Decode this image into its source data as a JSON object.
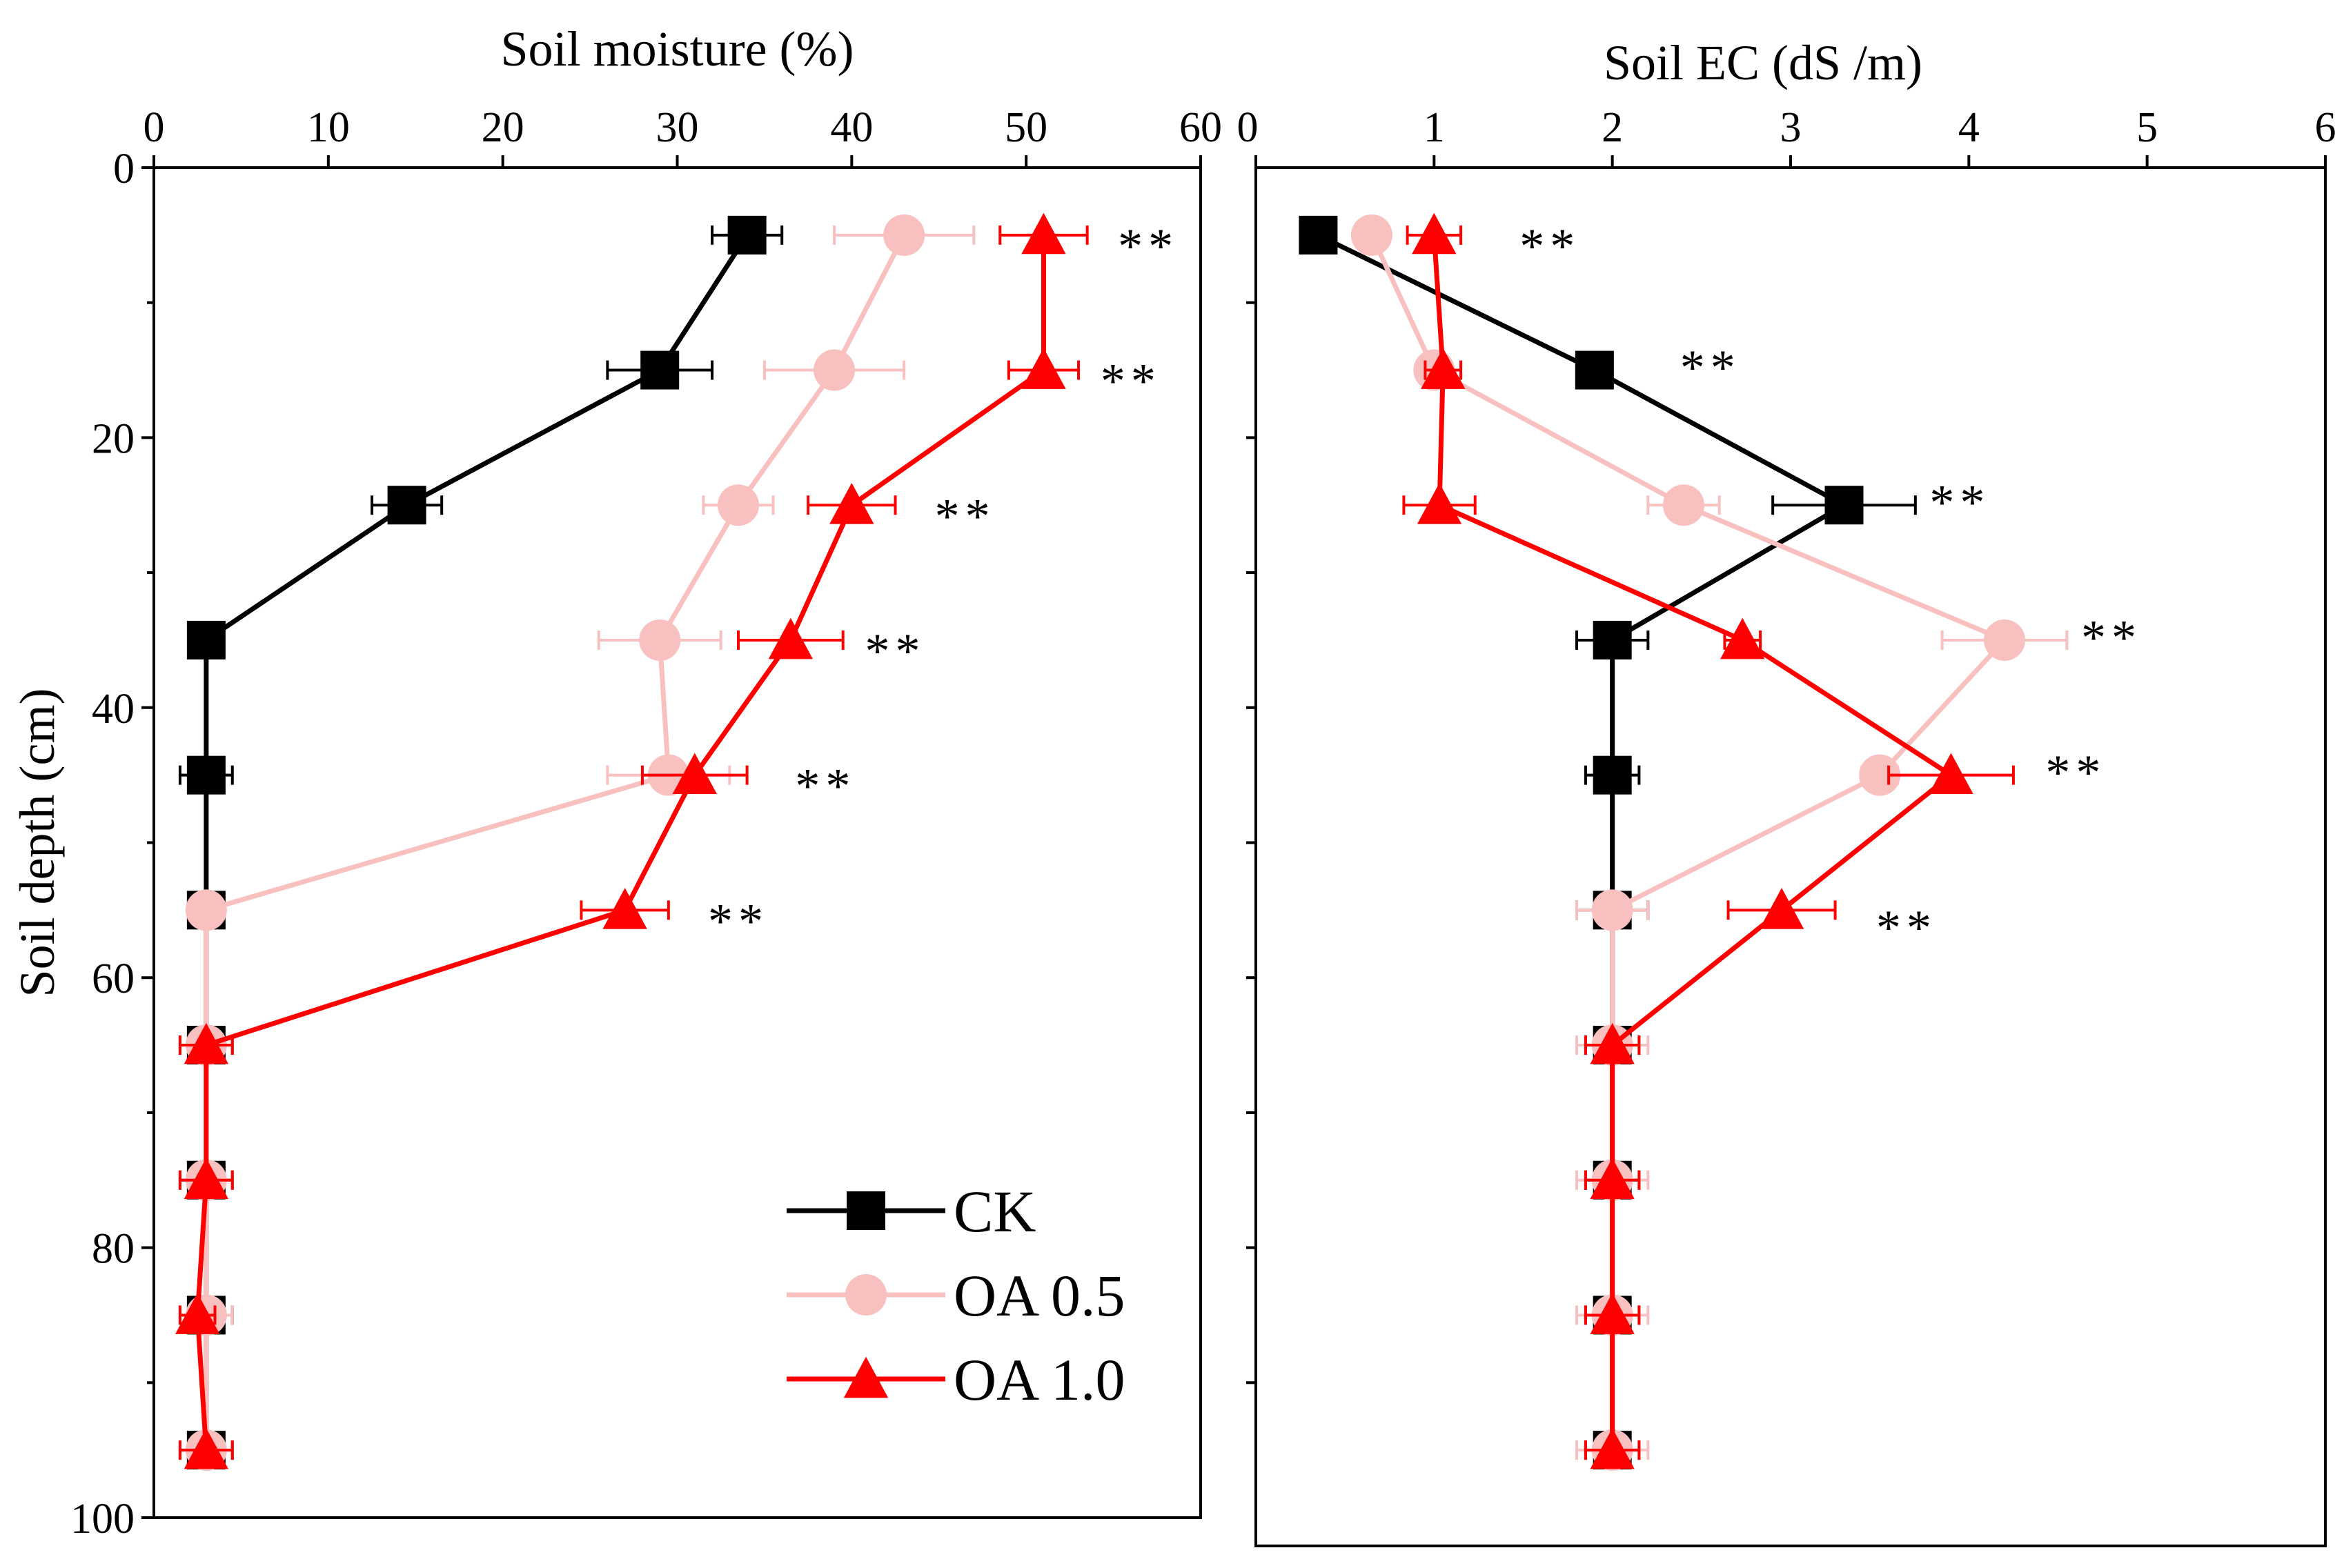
{
  "chart_data": [
    {
      "type": "line",
      "title": "",
      "xlabel": "Soil moisture (%)",
      "ylabel": "Soil depth (cm)",
      "xlim": [
        0,
        60
      ],
      "ylim": [
        0,
        100
      ],
      "y_inverted": true,
      "x_axis_position": "top",
      "xticks": [
        "0",
        "10",
        "20",
        "30",
        "40",
        "50",
        "60"
      ],
      "yticks": [
        "0",
        "20",
        "40",
        "60",
        "80",
        "100"
      ],
      "depth": [
        5,
        15,
        25,
        35,
        45,
        55,
        65,
        75,
        85,
        95
      ],
      "series": [
        {
          "name": "CK",
          "color": "#000000",
          "marker": "square",
          "values": [
            34,
            29,
            14.5,
            3,
            3,
            3,
            3,
            3,
            3,
            3
          ],
          "errors": [
            2,
            3,
            2,
            0.5,
            1.5,
            1,
            1.5,
            1.5,
            1.5,
            1.5
          ]
        },
        {
          "name": "OA 0.5",
          "color": "#f9c0c0",
          "marker": "circle",
          "values": [
            43,
            39,
            33.5,
            29,
            29.5,
            3,
            3,
            3,
            3,
            3
          ],
          "errors": [
            4,
            4,
            2,
            3.5,
            3.5,
            1,
            1.5,
            1.5,
            1.5,
            1.5
          ]
        },
        {
          "name": "OA 1.0",
          "color": "#ff0000",
          "marker": "triangle",
          "values": [
            51,
            51,
            40,
            36.5,
            31,
            27,
            3,
            3,
            2.5,
            3
          ],
          "errors": [
            2.5,
            2,
            2.5,
            3,
            3,
            2.5,
            1.5,
            1.5,
            1,
            1.5
          ]
        }
      ],
      "annotations": [
        {
          "text": "**",
          "x": 57,
          "y": 5
        },
        {
          "text": "**",
          "x": 56,
          "y": 15
        },
        {
          "text": "**",
          "x": 46.5,
          "y": 25
        },
        {
          "text": "**",
          "x": 42.5,
          "y": 35
        },
        {
          "text": "**",
          "x": 38.5,
          "y": 45
        },
        {
          "text": "**",
          "x": 33.5,
          "y": 55
        }
      ],
      "legend": {
        "position": "bottom-right",
        "entries": [
          "CK",
          "OA 0.5",
          "OA 1.0"
        ]
      }
    },
    {
      "type": "line",
      "title": "",
      "xlabel": "Soil EC (dS /m)",
      "ylabel": "",
      "xlim": [
        0,
        6
      ],
      "ylim": [
        0,
        100
      ],
      "y_inverted": true,
      "x_axis_position": "top",
      "xticks": [
        "0",
        "1",
        "2",
        "3",
        "4",
        "5",
        "6"
      ],
      "depth": [
        5,
        15,
        25,
        35,
        45,
        55,
        65,
        75,
        85,
        95
      ],
      "series": [
        {
          "name": "CK",
          "color": "#000000",
          "marker": "square",
          "values": [
            0.35,
            1.9,
            3.3,
            2,
            2,
            2,
            2,
            2,
            2,
            2
          ],
          "errors": [
            0.05,
            0.05,
            0.4,
            0.2,
            0.15,
            0.2,
            0.15,
            0.15,
            0.15,
            0.15
          ]
        },
        {
          "name": "OA 0.5",
          "color": "#f9c0c0",
          "marker": "circle",
          "values": [
            0.65,
            1,
            2.4,
            4.2,
            3.5,
            2,
            2,
            2,
            2,
            2
          ],
          "errors": [
            0.05,
            0.05,
            0.2,
            0.35,
            0.1,
            0.2,
            0.2,
            0.2,
            0.2,
            0.2
          ]
        },
        {
          "name": "OA 1.0",
          "color": "#ff0000",
          "marker": "triangle",
          "values": [
            1,
            1.05,
            1.03,
            2.73,
            3.9,
            2.95,
            2,
            2,
            2,
            2
          ],
          "errors": [
            0.15,
            0.1,
            0.2,
            0.1,
            0.35,
            0.3,
            0.15,
            0.15,
            0.15,
            0.15
          ]
        }
      ],
      "annotations": [
        {
          "text": "**",
          "x": 1.65,
          "y": 5
        },
        {
          "text": "**",
          "x": 2.55,
          "y": 14
        },
        {
          "text": "**",
          "x": 3.95,
          "y": 24
        },
        {
          "text": "**",
          "x": 4.8,
          "y": 34
        },
        {
          "text": "**",
          "x": 4.6,
          "y": 44
        },
        {
          "text": "**",
          "x": 3.65,
          "y": 55.5
        }
      ]
    }
  ]
}
